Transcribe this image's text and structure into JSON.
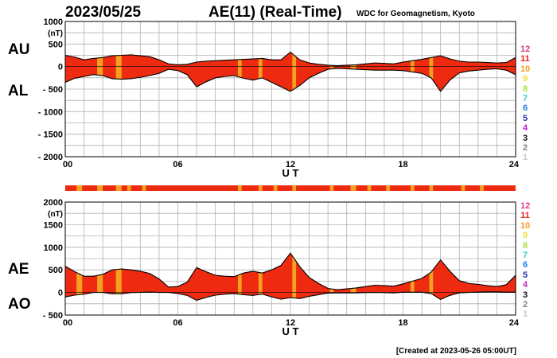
{
  "header": {
    "date": "2023/05/25",
    "title": "AE(11) (Real-Time)",
    "credit": "WDC for Geomagnetism, Kyoto"
  },
  "footer": {
    "created": "[Created at 2023-05-26 05:00UT]"
  },
  "legend": {
    "labels": [
      "12",
      "11",
      "10",
      "9",
      "8",
      "7",
      "6",
      "5",
      "4",
      "3",
      "2",
      "1"
    ],
    "colors": [
      "#e0398e",
      "#e8231c",
      "#f5a020",
      "#f0e030",
      "#a8e040",
      "#30d0c0",
      "#2080e8",
      "#2830b0",
      "#c020d0",
      "#111111",
      "#808080",
      "#c8c8c8"
    ]
  },
  "colors": {
    "fill_main": "#ee2a10",
    "fill_band": "#f5a020",
    "grid": "#b0b0b0"
  },
  "chart_data": [
    {
      "type": "area",
      "panel": "top",
      "series_labels": [
        "AU",
        "AL"
      ],
      "unit": "(nT)",
      "xlabel": "U T",
      "x_ticks": [
        "00",
        "06",
        "12",
        "18",
        "24"
      ],
      "y_ticks": [
        "1000",
        "500",
        "0",
        "- 500",
        "- 1000",
        "- 1500",
        "- 2000"
      ],
      "ylim": [
        -2000,
        1000
      ],
      "xlim": [
        0,
        24
      ],
      "x": [
        0,
        0.5,
        1,
        1.5,
        2,
        2.5,
        3,
        3.5,
        4,
        4.5,
        5,
        5.5,
        6,
        6.5,
        7,
        7.5,
        8,
        8.5,
        9,
        9.5,
        10,
        10.5,
        11,
        11.5,
        12,
        12.5,
        13,
        13.5,
        14,
        14.5,
        15,
        15.5,
        16,
        16.5,
        17,
        17.5,
        18,
        18.5,
        19,
        19.5,
        20,
        20.5,
        21,
        21.5,
        22,
        22.5,
        23,
        23.5,
        24
      ],
      "au": [
        250,
        210,
        150,
        180,
        200,
        240,
        250,
        260,
        240,
        220,
        150,
        60,
        40,
        50,
        100,
        120,
        130,
        140,
        150,
        160,
        170,
        180,
        150,
        150,
        320,
        150,
        80,
        50,
        30,
        20,
        30,
        40,
        60,
        80,
        70,
        60,
        100,
        130,
        160,
        200,
        240,
        170,
        120,
        100,
        100,
        90,
        80,
        90,
        200
      ],
      "al": [
        -350,
        -260,
        -220,
        -180,
        -200,
        -270,
        -280,
        -270,
        -240,
        -200,
        -150,
        -60,
        -90,
        -180,
        -450,
        -340,
        -250,
        -220,
        -200,
        -260,
        -300,
        -250,
        -350,
        -450,
        -550,
        -420,
        -250,
        -150,
        -60,
        -40,
        -50,
        -60,
        -70,
        -80,
        -80,
        -80,
        -90,
        -120,
        -150,
        -250,
        -550,
        -300,
        -140,
        -100,
        -80,
        -60,
        -50,
        -80,
        -180
      ],
      "band_hours": [
        [
          1.7,
          2.0
        ],
        [
          2.7,
          3.0
        ],
        [
          9.2,
          9.4
        ],
        [
          10.3,
          10.5
        ],
        [
          12.1,
          12.3
        ],
        [
          14.1,
          14.3
        ],
        [
          15.2,
          15.5
        ],
        [
          18.4,
          18.6
        ],
        [
          19.4,
          19.6
        ]
      ]
    },
    {
      "type": "area",
      "panel": "bottom",
      "series_labels": [
        "AE",
        "AO"
      ],
      "unit": "(nT)",
      "xlabel": "U T",
      "x_ticks": [
        "00",
        "06",
        "12",
        "18",
        "24"
      ],
      "y_ticks": [
        "2000",
        "1500",
        "1000",
        "500",
        "0",
        "- 500"
      ],
      "ylim": [
        -500,
        2000
      ],
      "xlim": [
        0,
        24
      ],
      "x": [
        0,
        0.5,
        1,
        1.5,
        2,
        2.5,
        3,
        3.5,
        4,
        4.5,
        5,
        5.5,
        6,
        6.5,
        7,
        7.5,
        8,
        8.5,
        9,
        9.5,
        10,
        10.5,
        11,
        11.5,
        12,
        12.5,
        13,
        13.5,
        14,
        14.5,
        15,
        15.5,
        16,
        16.5,
        17,
        17.5,
        18,
        18.5,
        19,
        19.5,
        20,
        20.5,
        21,
        21.5,
        22,
        22.5,
        23,
        23.5,
        24
      ],
      "ae": [
        580,
        460,
        360,
        360,
        400,
        500,
        520,
        500,
        470,
        420,
        300,
        120,
        130,
        230,
        550,
        460,
        380,
        360,
        350,
        430,
        470,
        430,
        500,
        600,
        870,
        570,
        330,
        200,
        90,
        60,
        80,
        100,
        130,
        160,
        150,
        140,
        190,
        250,
        310,
        450,
        720,
        470,
        260,
        200,
        180,
        150,
        130,
        170,
        380
      ],
      "ao": [
        -100,
        -60,
        -40,
        0,
        0,
        -30,
        -30,
        -5,
        0,
        10,
        0,
        0,
        -25,
        -65,
        -175,
        -110,
        -60,
        -40,
        -25,
        -50,
        -65,
        -35,
        -100,
        -150,
        -115,
        -135,
        -85,
        -50,
        -15,
        -10,
        -10,
        -10,
        -5,
        0,
        -5,
        -10,
        5,
        5,
        5,
        -25,
        -155,
        -65,
        -10,
        0,
        10,
        15,
        15,
        5,
        10
      ],
      "band_hours": [
        [
          0.6,
          0.9
        ],
        [
          1.7,
          2.0
        ],
        [
          2.7,
          3.0
        ],
        [
          9.2,
          9.4
        ],
        [
          10.3,
          10.5
        ],
        [
          12.1,
          12.3
        ],
        [
          14.1,
          14.3
        ],
        [
          15.2,
          15.5
        ],
        [
          18.4,
          18.6
        ],
        [
          19.4,
          19.6
        ]
      ]
    }
  ],
  "activity_bar": {
    "band_hours": [
      [
        0.6,
        0.9
      ],
      [
        1.7,
        2.0
      ],
      [
        2.7,
        3.0
      ],
      [
        3.3,
        3.5
      ],
      [
        4.1,
        4.3
      ],
      [
        9.2,
        9.4
      ],
      [
        10.3,
        10.5
      ],
      [
        11.1,
        11.3
      ],
      [
        12.1,
        12.3
      ],
      [
        14.1,
        14.3
      ],
      [
        15.2,
        15.5
      ],
      [
        16.1,
        16.3
      ],
      [
        17.1,
        17.3
      ],
      [
        18.4,
        18.6
      ],
      [
        19.4,
        19.6
      ],
      [
        21.1,
        21.3
      ],
      [
        22.1,
        22.3
      ]
    ]
  },
  "labels": {
    "top_upper": "AU",
    "top_lower": "AL",
    "bottom_upper": "AE",
    "bottom_lower": "AO"
  }
}
